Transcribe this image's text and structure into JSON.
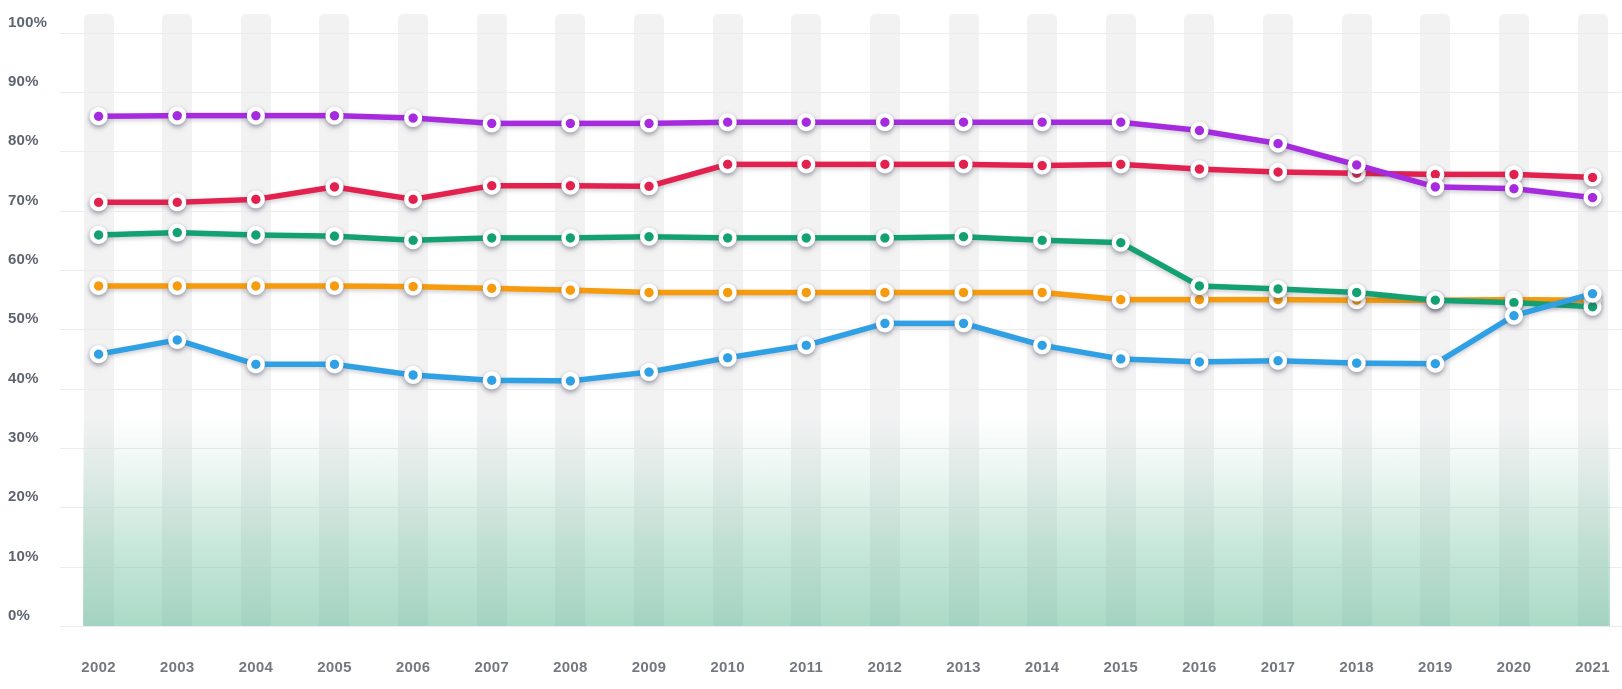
{
  "chart_data": {
    "type": "line",
    "title": "",
    "xlabel": "",
    "ylabel": "",
    "ylim": [
      0,
      100
    ],
    "grid": true,
    "legend_position": "none",
    "y_tick_labels": [
      "0%",
      "10%",
      "20%",
      "30%",
      "40%",
      "50%",
      "60%",
      "70%",
      "80%",
      "90%",
      "100%"
    ],
    "y_tick_values": [
      0,
      10,
      20,
      30,
      40,
      50,
      60,
      70,
      80,
      90,
      100
    ],
    "categories": [
      "2002",
      "2003",
      "2004",
      "2005",
      "2006",
      "2007",
      "2008",
      "2009",
      "2010",
      "2011",
      "2012",
      "2013",
      "2014",
      "2015",
      "2016",
      "2017",
      "2018",
      "2019",
      "2020",
      "2021"
    ],
    "series": [
      {
        "name": "series-purple",
        "color": "#A62BDF",
        "values": [
          85.9,
          86.0,
          86.0,
          86.0,
          85.6,
          84.7,
          84.7,
          84.7,
          84.9,
          84.9,
          84.9,
          84.9,
          84.9,
          84.9,
          83.5,
          81.3,
          77.7,
          74.0,
          73.7,
          72.2
        ]
      },
      {
        "name": "series-red",
        "color": "#E3214F",
        "values": [
          71.4,
          71.4,
          71.9,
          74.0,
          71.9,
          74.2,
          74.2,
          74.1,
          77.8,
          77.8,
          77.8,
          77.8,
          77.6,
          77.8,
          77.0,
          76.5,
          76.3,
          76.1,
          76.1,
          75.6
        ]
      },
      {
        "name": "series-green",
        "color": "#13A172",
        "values": [
          65.9,
          66.3,
          65.9,
          65.7,
          65.0,
          65.4,
          65.4,
          65.6,
          65.4,
          65.4,
          65.4,
          65.6,
          65.0,
          64.6,
          57.3,
          56.8,
          56.2,
          54.9,
          54.5,
          53.8
        ]
      },
      {
        "name": "series-orange",
        "color": "#F59B0D",
        "values": [
          57.3,
          57.3,
          57.3,
          57.3,
          57.2,
          56.9,
          56.6,
          56.2,
          56.2,
          56.2,
          56.2,
          56.2,
          56.2,
          55.0,
          55.0,
          55.0,
          54.9,
          54.9,
          55.0,
          54.9
        ]
      },
      {
        "name": "series-blue",
        "color": "#2FA0E3",
        "values": [
          45.8,
          48.2,
          44.1,
          44.1,
          42.3,
          41.4,
          41.3,
          42.8,
          45.2,
          47.3,
          51.0,
          51.0,
          47.3,
          45.0,
          44.5,
          44.7,
          44.3,
          44.2,
          52.3,
          56.0
        ]
      }
    ]
  },
  "style": {
    "band_color": "#f2f2f3",
    "gridline_color": "#ececef",
    "area_gradient_color": "#4BB187",
    "y_label_color": "#5d646e",
    "x_label_color": "#73777e",
    "background": "#ffffff"
  }
}
